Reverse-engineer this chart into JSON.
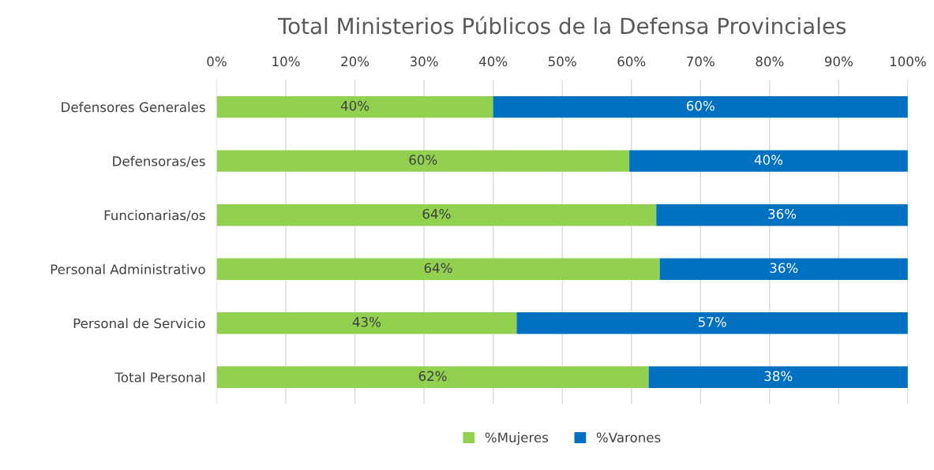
{
  "chart_data": {
    "type": "bar",
    "orientation": "horizontal",
    "stacked": true,
    "title": "Total Ministerios Públicos de la Defensa Provinciales",
    "categories": [
      "Defensores Generales",
      "Defensoras/es",
      "Funcionarias/os",
      "Personal Administrativo",
      "Personal de Servicio",
      "Total Personal"
    ],
    "series": [
      {
        "name": "%Mujeres",
        "color": "#92d050",
        "values": [
          40,
          59.7,
          63.6,
          64.1,
          43.4,
          62.5
        ],
        "value_labels": [
          "40%",
          "60%",
          "64%",
          "64%",
          "43%",
          "62%"
        ]
      },
      {
        "name": "%Varones",
        "color": "#0070c0",
        "values": [
          60,
          40.3,
          36.4,
          35.9,
          56.6,
          37.5
        ],
        "value_labels": [
          "60%",
          "40%",
          "36%",
          "36%",
          "57%",
          "38%"
        ]
      }
    ],
    "xlim": [
      0,
      100
    ],
    "xticks": [
      {
        "value": 0,
        "label": "0%"
      },
      {
        "value": 10,
        "label": "10%"
      },
      {
        "value": 20,
        "label": "20%"
      },
      {
        "value": 30,
        "label": "30%"
      },
      {
        "value": 40,
        "label": "40%"
      },
      {
        "value": 50,
        "label": "50%"
      },
      {
        "value": 60,
        "label": "60%"
      },
      {
        "value": 70,
        "label": "70%"
      },
      {
        "value": 80,
        "label": "80%"
      },
      {
        "value": 90,
        "label": "90%"
      },
      {
        "value": 100,
        "label": "100%"
      }
    ],
    "grid": "x",
    "legend": "bottom"
  }
}
